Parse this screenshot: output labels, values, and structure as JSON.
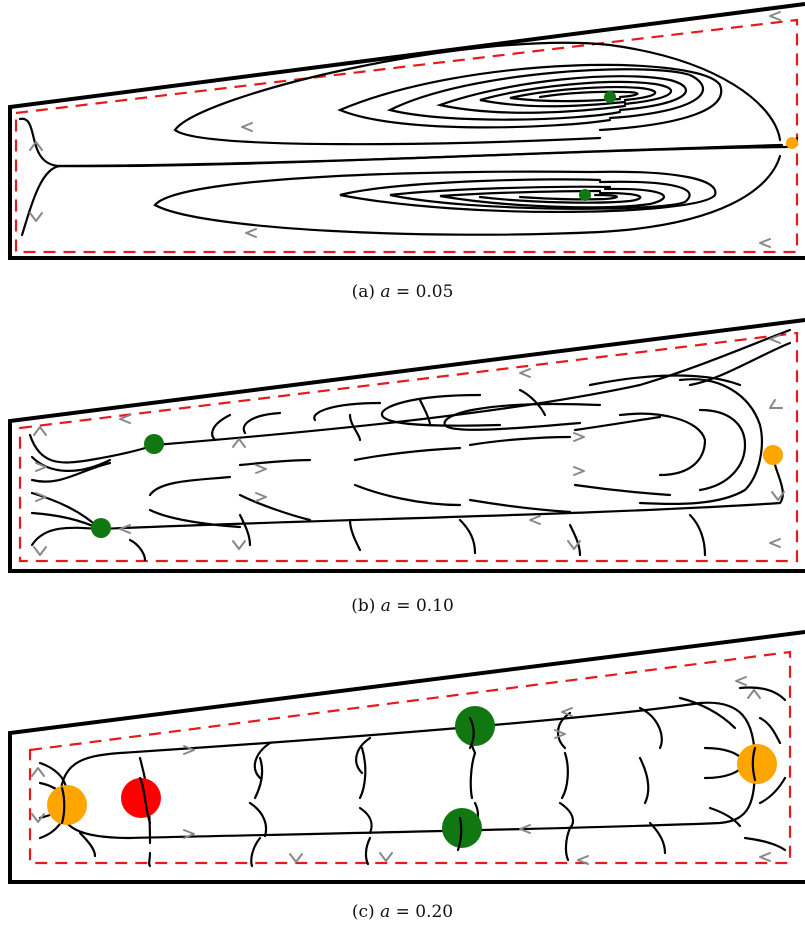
{
  "panels": [
    {
      "id": "a",
      "caption_prefix": "(a) ",
      "caption_var": "a",
      "caption_suffix": " = 0.05",
      "colors": {
        "stable": "#117711",
        "saddle": "#ffa500"
      }
    },
    {
      "id": "b",
      "caption_prefix": "(b) ",
      "caption_var": "a",
      "caption_suffix": " = 0.10",
      "colors": {
        "stable": "#117711",
        "saddle": "#ffa500"
      }
    },
    {
      "id": "c",
      "caption_prefix": "(c) ",
      "caption_var": "a",
      "caption_suffix": " = 0.20",
      "colors": {
        "stable": "#117711",
        "saddle": "#ffa500",
        "unstable": "#ff0000"
      }
    }
  ],
  "style": {
    "boundary_color": "#000000",
    "dashed_color": "#e41a1c",
    "arrow_color": "#888888"
  }
}
